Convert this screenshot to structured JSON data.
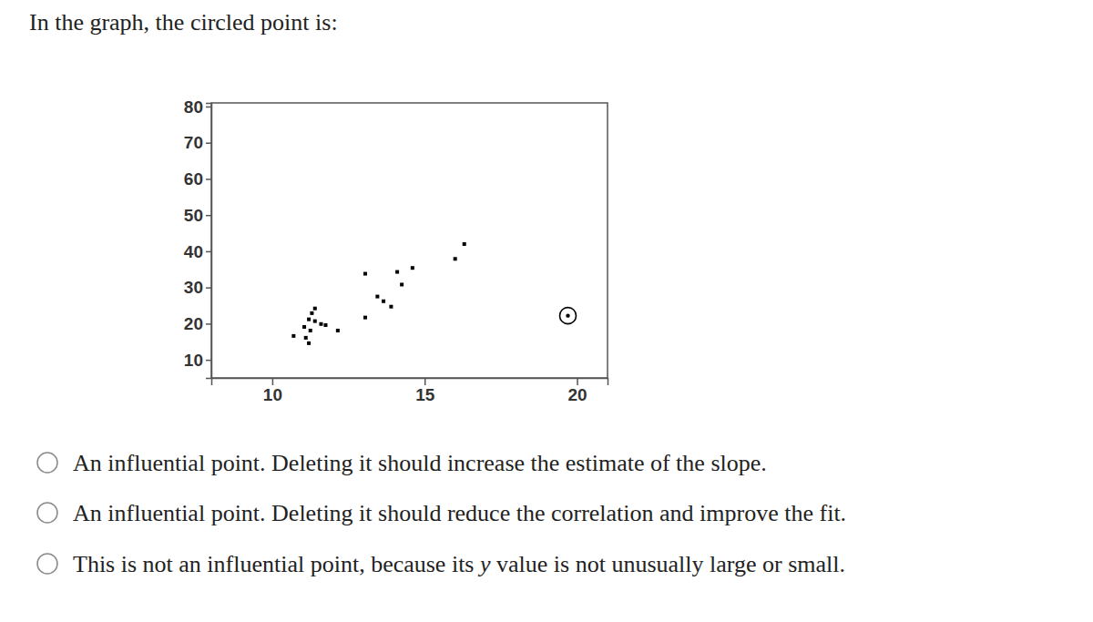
{
  "question": "In the graph, the circled point is:",
  "chart_data": {
    "type": "scatter",
    "xlim": [
      8,
      21
    ],
    "xticks": [
      10,
      15,
      20
    ],
    "ylim": [
      5,
      81
    ],
    "yticks": [
      10,
      20,
      30,
      40,
      50,
      60,
      70,
      80
    ],
    "series": [
      {
        "marker": "square",
        "color": "#000000",
        "x": [
          11.4,
          11.3,
          11.2,
          11.4,
          11.6,
          11.05,
          11.25,
          10.7,
          11.1,
          11.2,
          11.75,
          12.15,
          13.05,
          13.05,
          13.45,
          13.65,
          13.9,
          14.1,
          14.25,
          14.6,
          16.0,
          16.3
        ],
        "values": [
          24.2,
          22.9,
          21.2,
          20.7,
          19.9,
          19.1,
          18.1,
          16.6,
          16.1,
          14.6,
          19.6,
          18.1,
          21.7,
          33.8,
          27.5,
          26.2,
          24.7,
          34.3,
          30.8,
          35.4,
          37.9,
          42.0
        ]
      },
      {
        "marker": "circled",
        "color": "#000000",
        "x": [
          19.7
        ],
        "values": [
          22.2
        ]
      }
    ]
  },
  "options": [
    [
      {
        "text": "An influential point. Deleting it should increase the estimate of the slope."
      }
    ],
    [
      {
        "text": "An influential point. Deleting it should reduce the correlation and improve the fit."
      }
    ],
    [
      {
        "text": "This is not an influential point, because its "
      },
      {
        "text": "y",
        "italic": true
      },
      {
        "text": " value is not unusually large or small."
      }
    ]
  ]
}
